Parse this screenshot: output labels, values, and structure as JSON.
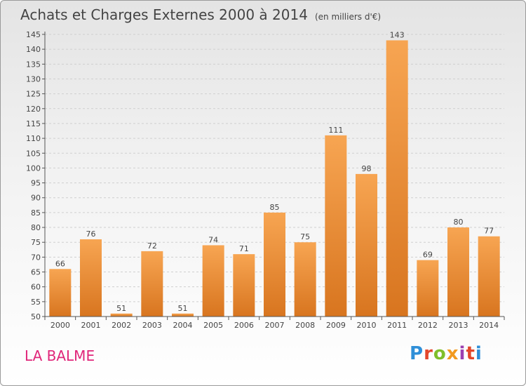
{
  "header": {
    "title": "Achats et Charges Externes 2000 à 2014",
    "unit": "(en milliers d'€)"
  },
  "footer": {
    "place": "LA BALME",
    "logo": "Proxiti",
    "logo_colors": [
      "#2f8fd8",
      "#e3462a",
      "#7fbf2a",
      "#f29a1f",
      "#9c3fb0",
      "#e3462a",
      "#2f8fd8"
    ]
  },
  "colors": {
    "bar_top": "#f7a552",
    "bar_bottom": "#d8751f",
    "axis": "#555555",
    "grid": "#cfcfcf",
    "place": "#e0267a"
  },
  "chart_data": {
    "type": "bar",
    "title": "Achats et Charges Externes 2000 à 2014",
    "subtitle": "(en milliers d'€)",
    "categories": [
      "2000",
      "2001",
      "2002",
      "2003",
      "2004",
      "2005",
      "2006",
      "2007",
      "2008",
      "2009",
      "2010",
      "2011",
      "2012",
      "2013",
      "2014"
    ],
    "values": [
      66,
      76,
      51,
      72,
      51,
      74,
      71,
      85,
      75,
      111,
      98,
      143,
      69,
      80,
      77
    ],
    "ylim": [
      50,
      145
    ],
    "yticks": [
      50,
      55,
      60,
      65,
      70,
      75,
      80,
      85,
      90,
      95,
      100,
      105,
      110,
      115,
      120,
      125,
      130,
      135,
      140,
      145
    ],
    "grid": true,
    "legend": "none",
    "data_labels": true
  }
}
